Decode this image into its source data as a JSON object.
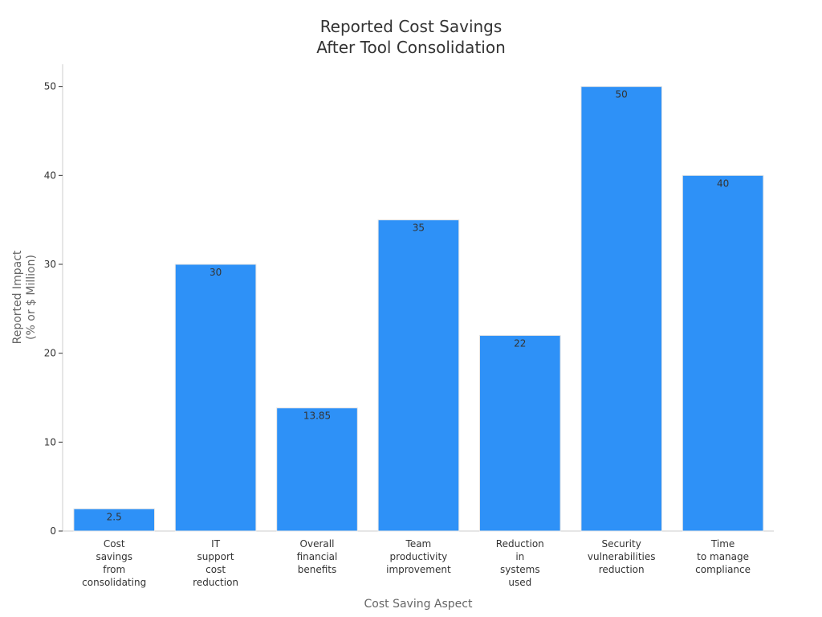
{
  "chart_data": {
    "type": "bar",
    "title": [
      "Reported Cost Savings",
      "After Tool Consolidation"
    ],
    "xlabel": "Cost Saving Aspect",
    "ylabel": [
      "Reported Impact",
      "(% or $ Million)"
    ],
    "categories": [
      [
        "Cost",
        "savings",
        "from",
        "consolidating"
      ],
      [
        "IT",
        "support",
        "cost",
        "reduction"
      ],
      [
        "Overall",
        "financial",
        "benefits"
      ],
      [
        "Team",
        "productivity",
        "improvement"
      ],
      [
        "Reduction",
        "in",
        "systems",
        "used"
      ],
      [
        "Security",
        "vulnerabilities",
        "reduction"
      ],
      [
        "Time",
        "to manage",
        "compliance"
      ]
    ],
    "values": [
      2.5,
      30,
      13.85,
      35,
      22,
      50,
      40
    ],
    "value_labels": [
      "2.5",
      "30",
      "13.85",
      "35",
      "22",
      "50",
      "40"
    ],
    "yticks": [
      0,
      10,
      20,
      30,
      40,
      50
    ],
    "ylim": [
      0,
      52.5
    ],
    "grid": false,
    "legend": "none",
    "bar_color": "#2e91f7"
  }
}
